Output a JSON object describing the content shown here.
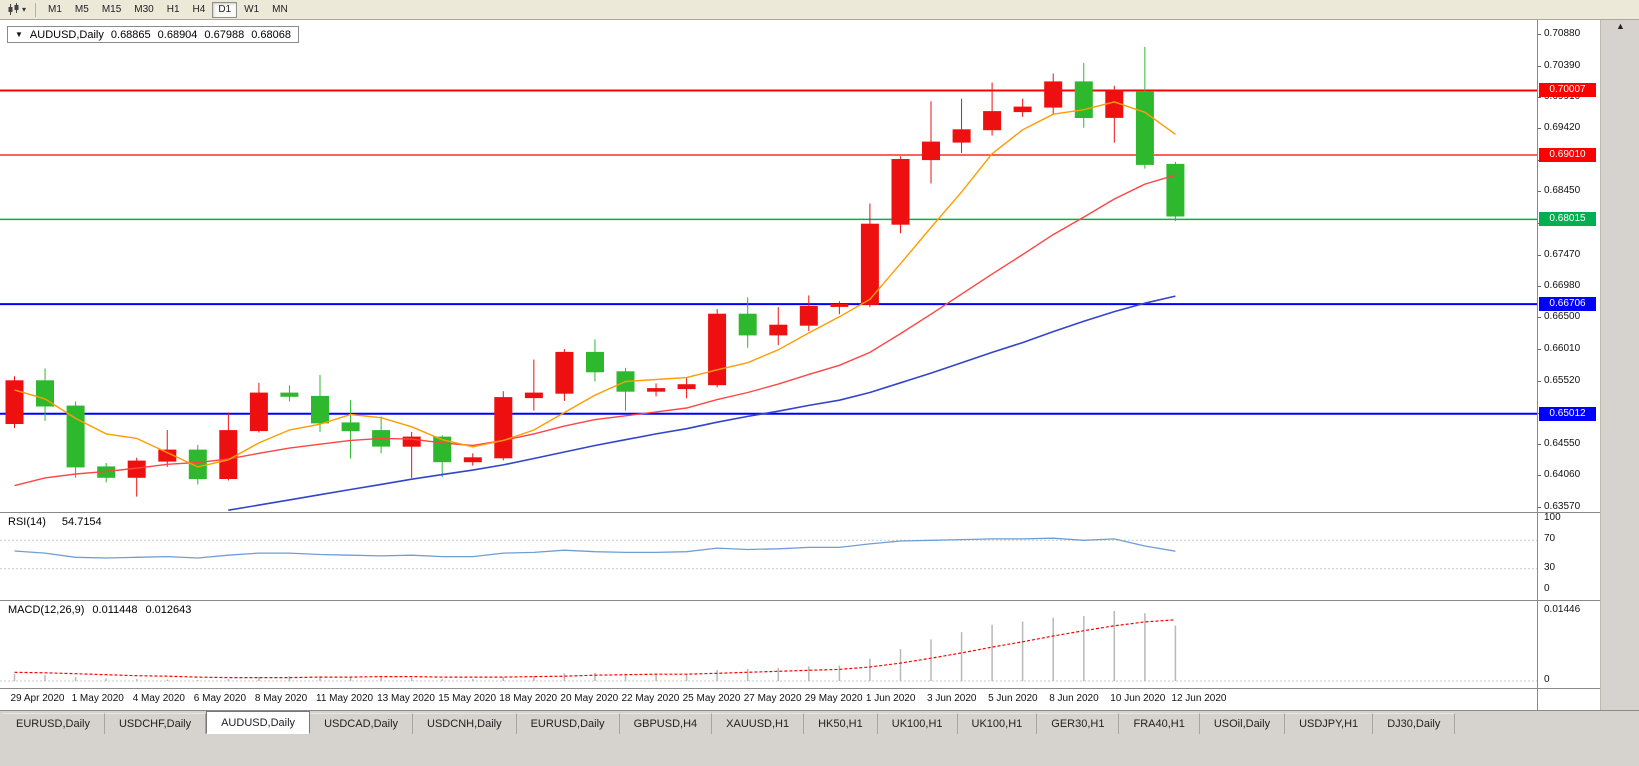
{
  "window": {
    "scroll_up_icon": "▲"
  },
  "toolbar": {
    "timeframes": [
      {
        "label": "M1",
        "active": false
      },
      {
        "label": "M5",
        "active": false
      },
      {
        "label": "M15",
        "active": false
      },
      {
        "label": "M30",
        "active": false
      },
      {
        "label": "H1",
        "active": false
      },
      {
        "label": "H4",
        "active": false
      },
      {
        "label": "D1",
        "active": true
      },
      {
        "label": "W1",
        "active": false
      },
      {
        "label": "MN",
        "active": false
      }
    ]
  },
  "chart": {
    "collapse_icon": "▼",
    "symbol_period": "AUDUSD,Daily",
    "open": "0.68865",
    "high": "0.68904",
    "low": "0.67988",
    "close": "0.68068"
  },
  "rsi": {
    "label": "RSI(14)",
    "value": "54.7154"
  },
  "macd": {
    "label": "MACD(12,26,9)",
    "value": "0.011448",
    "signal_value": "0.012643"
  },
  "colors": {
    "bull_candle": "#ee1010",
    "bear_candle": "#2eb82e",
    "ma_fast": "#ff9c00",
    "ma_mid": "#ff4545",
    "ma_slow": "#3344cc",
    "rsi_line": "#6f9ed6",
    "macd_bar": "#b8b8b8",
    "macd_signal": "#ff0000",
    "level_dash": "#c8c8c8"
  },
  "chart_data": {
    "type": "candlestick",
    "symbol": "AUDUSD",
    "period": "Daily",
    "y_ticks": [
      "0.70880",
      "0.70390",
      "0.69910",
      "0.69420",
      "0.68930",
      "0.68450",
      "0.67960",
      "0.67470",
      "0.66980",
      "0.66500",
      "0.66010",
      "0.65520",
      "0.65030",
      "0.64550",
      "0.64060",
      "0.63570"
    ],
    "x_labels": [
      "29 Apr 2020",
      "1 May 2020",
      "4 May 2020",
      "6 May 2020",
      "8 May 2020",
      "11 May 2020",
      "13 May 2020",
      "15 May 2020",
      "18 May 2020",
      "20 May 2020",
      "22 May 2020",
      "25 May 2020",
      "27 May 2020",
      "29 May 2020",
      "1 Jun 2020",
      "3 Jun 2020",
      "5 Jun 2020",
      "8 Jun 2020",
      "10 Jun 2020",
      "12 Jun 2020"
    ],
    "candles": [
      {
        "t": "29 Apr",
        "o": 0.6486,
        "h": 0.6559,
        "l": 0.6479,
        "c": 0.6552
      },
      {
        "t": "30 Apr",
        "o": 0.6552,
        "h": 0.6571,
        "l": 0.649,
        "c": 0.6513
      },
      {
        "t": "1 May",
        "o": 0.6513,
        "h": 0.652,
        "l": 0.6402,
        "c": 0.6419
      },
      {
        "t": "3 May",
        "o": 0.6419,
        "h": 0.6425,
        "l": 0.6395,
        "c": 0.6403
      },
      {
        "t": "4 May",
        "o": 0.6403,
        "h": 0.6433,
        "l": 0.6373,
        "c": 0.6428
      },
      {
        "t": "5 May",
        "o": 0.6428,
        "h": 0.6476,
        "l": 0.6419,
        "c": 0.6445
      },
      {
        "t": "6 May",
        "o": 0.6445,
        "h": 0.6453,
        "l": 0.6392,
        "c": 0.6401
      },
      {
        "t": "7 May",
        "o": 0.6401,
        "h": 0.6503,
        "l": 0.6398,
        "c": 0.6475
      },
      {
        "t": "8 May",
        "o": 0.6475,
        "h": 0.6549,
        "l": 0.6472,
        "c": 0.6533
      },
      {
        "t": "10 May",
        "o": 0.6533,
        "h": 0.6545,
        "l": 0.652,
        "c": 0.6528
      },
      {
        "t": "11 May",
        "o": 0.6528,
        "h": 0.6561,
        "l": 0.6473,
        "c": 0.6487
      },
      {
        "t": "12 May",
        "o": 0.6487,
        "h": 0.6522,
        "l": 0.6432,
        "c": 0.6475
      },
      {
        "t": "13 May",
        "o": 0.6475,
        "h": 0.6497,
        "l": 0.644,
        "c": 0.6451
      },
      {
        "t": "14 May",
        "o": 0.6451,
        "h": 0.6473,
        "l": 0.6402,
        "c": 0.6465
      },
      {
        "t": "15 May",
        "o": 0.6465,
        "h": 0.6468,
        "l": 0.6403,
        "c": 0.6427
      },
      {
        "t": "17 May",
        "o": 0.6427,
        "h": 0.644,
        "l": 0.6421,
        "c": 0.6433
      },
      {
        "t": "18 May",
        "o": 0.6433,
        "h": 0.6536,
        "l": 0.6429,
        "c": 0.6526
      },
      {
        "t": "19 May",
        "o": 0.6526,
        "h": 0.6585,
        "l": 0.6506,
        "c": 0.6533
      },
      {
        "t": "20 May",
        "o": 0.6533,
        "h": 0.6601,
        "l": 0.6521,
        "c": 0.6596
      },
      {
        "t": "21 May",
        "o": 0.6596,
        "h": 0.6616,
        "l": 0.6551,
        "c": 0.6566
      },
      {
        "t": "22 May",
        "o": 0.6566,
        "h": 0.6572,
        "l": 0.6506,
        "c": 0.6536
      },
      {
        "t": "24 May",
        "o": 0.6536,
        "h": 0.6548,
        "l": 0.6528,
        "c": 0.654
      },
      {
        "t": "25 May",
        "o": 0.654,
        "h": 0.6556,
        "l": 0.6525,
        "c": 0.6546
      },
      {
        "t": "26 May",
        "o": 0.6546,
        "h": 0.6663,
        "l": 0.6542,
        "c": 0.6655
      },
      {
        "t": "27 May",
        "o": 0.6655,
        "h": 0.6681,
        "l": 0.6603,
        "c": 0.6623
      },
      {
        "t": "28 May",
        "o": 0.6623,
        "h": 0.6666,
        "l": 0.6607,
        "c": 0.6638
      },
      {
        "t": "29 May",
        "o": 0.6638,
        "h": 0.6684,
        "l": 0.6629,
        "c": 0.6667
      },
      {
        "t": "31 May",
        "o": 0.6667,
        "h": 0.6675,
        "l": 0.6655,
        "c": 0.667
      },
      {
        "t": "1 Jun",
        "o": 0.667,
        "h": 0.6826,
        "l": 0.6666,
        "c": 0.6794
      },
      {
        "t": "2 Jun",
        "o": 0.6794,
        "h": 0.6899,
        "l": 0.678,
        "c": 0.6894
      },
      {
        "t": "3 Jun",
        "o": 0.6894,
        "h": 0.6984,
        "l": 0.6857,
        "c": 0.6921
      },
      {
        "t": "4 Jun",
        "o": 0.6921,
        "h": 0.6988,
        "l": 0.6904,
        "c": 0.694
      },
      {
        "t": "5 Jun",
        "o": 0.694,
        "h": 0.7013,
        "l": 0.6931,
        "c": 0.6968
      },
      {
        "t": "7 Jun",
        "o": 0.6968,
        "h": 0.6988,
        "l": 0.696,
        "c": 0.6975
      },
      {
        "t": "8 Jun",
        "o": 0.6975,
        "h": 0.7027,
        "l": 0.6963,
        "c": 0.7014
      },
      {
        "t": "9 Jun",
        "o": 0.7014,
        "h": 0.7043,
        "l": 0.6943,
        "c": 0.6959
      },
      {
        "t": "10 Jun",
        "o": 0.6959,
        "h": 0.7008,
        "l": 0.692,
        "c": 0.7
      },
      {
        "t": "11 Jun",
        "o": 0.6999,
        "h": 0.7068,
        "l": 0.688,
        "c": 0.68865
      },
      {
        "t": "12 Jun",
        "o": 0.68865,
        "h": 0.68904,
        "l": 0.67988,
        "c": 0.68068
      }
    ],
    "ma_fast": [
      0.6538,
      0.6524,
      0.6494,
      0.647,
      0.6463,
      0.6441,
      0.6419,
      0.643,
      0.6456,
      0.6476,
      0.6485,
      0.65,
      0.6495,
      0.6481,
      0.6461,
      0.645,
      0.646,
      0.6476,
      0.6503,
      0.653,
      0.6551,
      0.6554,
      0.6557,
      0.6569,
      0.658,
      0.66,
      0.6626,
      0.6651,
      0.6678,
      0.6733,
      0.6789,
      0.6844,
      0.6903,
      0.694,
      0.6964,
      0.6971,
      0.6983,
      0.6967,
      0.6933
    ],
    "ma_mid": [
      0.639,
      0.6402,
      0.6408,
      0.6412,
      0.6417,
      0.6423,
      0.6426,
      0.6431,
      0.644,
      0.6448,
      0.6454,
      0.646,
      0.6463,
      0.6462,
      0.6456,
      0.6452,
      0.646,
      0.647,
      0.6482,
      0.6492,
      0.6498,
      0.6504,
      0.651,
      0.6523,
      0.6534,
      0.6547,
      0.6562,
      0.6576,
      0.6596,
      0.6625,
      0.6655,
      0.6686,
      0.6717,
      0.6747,
      0.6778,
      0.6805,
      0.6833,
      0.6856,
      0.687
    ],
    "ma_slow": {
      "start_index": 7,
      "values": [
        0.6352,
        0.636,
        0.6368,
        0.6376,
        0.6384,
        0.6392,
        0.64,
        0.6407,
        0.6414,
        0.6422,
        0.6432,
        0.6442,
        0.6452,
        0.6461,
        0.647,
        0.6478,
        0.6488,
        0.6497,
        0.6505,
        0.6514,
        0.6522,
        0.6534,
        0.6549,
        0.6564,
        0.658,
        0.6596,
        0.6611,
        0.6628,
        0.6644,
        0.6659,
        0.6672,
        0.6683
      ]
    },
    "hlines": [
      {
        "price": 0.70007,
        "label": "0.70007",
        "color": "#ff0000",
        "width": 2
      },
      {
        "price": 0.6901,
        "label": "0.69010",
        "color": "#ff0000",
        "width": 1.3
      },
      {
        "price": 0.68015,
        "label": "0.68015",
        "color": "#00b050",
        "width": 1.5
      },
      {
        "price": 0.66706,
        "label": "0.66706",
        "color": "#0000ff",
        "width": 2
      },
      {
        "price": 0.65012,
        "label": "0.65012",
        "color": "#0000ff",
        "width": 2
      }
    ],
    "rsi": {
      "values": [
        55,
        52,
        46,
        45,
        46,
        47,
        45,
        49,
        52,
        52,
        50,
        49,
        48,
        49,
        47,
        47,
        52,
        53,
        56,
        54,
        53,
        53,
        54,
        59,
        57,
        58,
        60,
        60,
        65,
        69,
        70,
        71,
        72,
        72,
        73,
        70,
        72,
        62,
        54.7
      ],
      "levels": [
        100,
        70,
        30,
        0
      ]
    },
    "macd": {
      "histogram": [
        0.0015,
        0.0012,
        0.0008,
        0.0005,
        0.0004,
        0.0003,
        0.0002,
        0.0004,
        0.0008,
        0.001,
        0.001,
        0.0009,
        0.0007,
        0.0006,
        0.0004,
        0.0004,
        0.0008,
        0.0011,
        0.0016,
        0.0017,
        0.0015,
        0.0015,
        0.0015,
        0.0023,
        0.0025,
        0.0027,
        0.003,
        0.0032,
        0.0046,
        0.0066,
        0.0086,
        0.0101,
        0.0116,
        0.0123,
        0.0131,
        0.0134,
        0.01446,
        0.014,
        0.011448
      ],
      "signal": [
        0.0018,
        0.0017,
        0.0015,
        0.0013,
        0.0011,
        0.001,
        0.0008,
        0.0007,
        0.0007,
        0.0007,
        0.0008,
        0.0008,
        0.0009,
        0.0009,
        0.0008,
        0.0008,
        0.0008,
        0.0009,
        0.001,
        0.0012,
        0.0013,
        0.0014,
        0.0014,
        0.0016,
        0.0018,
        0.002,
        0.0022,
        0.0024,
        0.0029,
        0.0037,
        0.0047,
        0.0058,
        0.007,
        0.0081,
        0.0093,
        0.0104,
        0.0114,
        0.0122,
        0.012643
      ],
      "scale_max": 0.01446,
      "scale_max_label": "0.01446",
      "scale_min_label": "0"
    }
  },
  "tabs": [
    {
      "label": "EURUSD,Daily",
      "active": false
    },
    {
      "label": "USDCHF,Daily",
      "active": false
    },
    {
      "label": "AUDUSD,Daily",
      "active": true
    },
    {
      "label": "USDCAD,Daily",
      "active": false
    },
    {
      "label": "USDCNH,Daily",
      "active": false
    },
    {
      "label": "EURUSD,Daily",
      "active": false
    },
    {
      "label": "GBPUSD,H4",
      "active": false
    },
    {
      "label": "XAUUSD,H1",
      "active": false
    },
    {
      "label": "HK50,H1",
      "active": false
    },
    {
      "label": "UK100,H1",
      "active": false
    },
    {
      "label": "UK100,H1",
      "active": false
    },
    {
      "label": "GER30,H1",
      "active": false
    },
    {
      "label": "FRA40,H1",
      "active": false
    },
    {
      "label": "USOil,Daily",
      "active": false
    },
    {
      "label": "USDJPY,H1",
      "active": false
    },
    {
      "label": "DJ30,Daily",
      "active": false
    }
  ]
}
